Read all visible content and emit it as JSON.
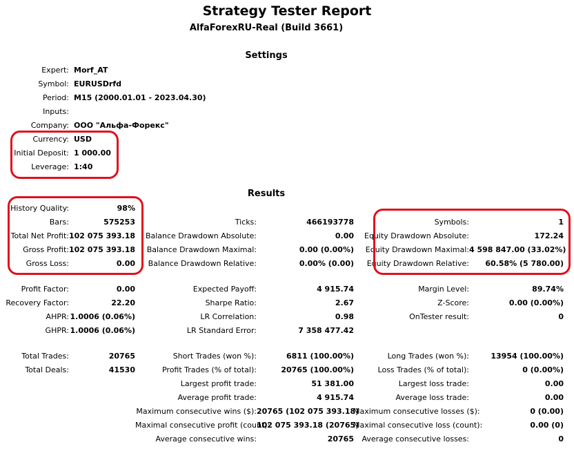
{
  "header": {
    "title": "Strategy Tester Report",
    "subtitle": "AlfaForexRU-Real (Build 3661)"
  },
  "settings": {
    "heading": "Settings",
    "rows": [
      {
        "label": "Expert:",
        "value": "Morf_AT"
      },
      {
        "label": "Symbol:",
        "value": "EURUSDrfd"
      },
      {
        "label": "Period:",
        "value": "M15 (2000.01.01 - 2023.04.30)"
      },
      {
        "label": "Inputs:",
        "value": ""
      },
      {
        "label": "Company:",
        "value": "ООО \"Альфа-Форекс\""
      },
      {
        "label": "Currency:",
        "value": "USD"
      },
      {
        "label": "Initial Deposit:",
        "value": "1 000.00"
      },
      {
        "label": "Leverage:",
        "value": "1:40"
      }
    ]
  },
  "results": {
    "heading": "Results",
    "col1": [
      {
        "label": "History Quality:",
        "value": "98%"
      },
      {
        "label": "Bars:",
        "value": "575253"
      },
      {
        "label": "Total Net Profit:",
        "value": "102 075 393.18"
      },
      {
        "label": "Gross Profit:",
        "value": "102 075 393.18"
      },
      {
        "label": "Gross Loss:",
        "value": "0.00"
      },
      {
        "label": "Profit Factor:",
        "value": "0.00"
      },
      {
        "label": "Recovery Factor:",
        "value": "22.20"
      },
      {
        "label": "AHPR:",
        "value": "1.0006 (0.06%)"
      },
      {
        "label": "GHPR:",
        "value": "1.0006 (0.06%)"
      },
      {
        "label": "Total Trades:",
        "value": "20765"
      },
      {
        "label": "Total Deals:",
        "value": "41530"
      }
    ],
    "col2": [
      {
        "label": "Ticks:",
        "value": "466193778"
      },
      {
        "label": "Balance Drawdown Absolute:",
        "value": "0.00"
      },
      {
        "label": "Balance Drawdown Maximal:",
        "value": "0.00 (0.00%)"
      },
      {
        "label": "Balance Drawdown Relative:",
        "value": "0.00% (0.00)"
      },
      {
        "label": "Expected Payoff:",
        "value": "4 915.74"
      },
      {
        "label": "Sharpe Ratio:",
        "value": "2.67"
      },
      {
        "label": "LR Correlation:",
        "value": "0.98"
      },
      {
        "label": "LR Standard Error:",
        "value": "7 358 477.42"
      },
      {
        "label": "Short Trades (won %):",
        "value": "6811 (100.00%)"
      },
      {
        "label": "Profit Trades (% of total):",
        "value": "20765 (100.00%)"
      },
      {
        "label": "Largest profit trade:",
        "value": "51 381.00"
      },
      {
        "label": "Average profit trade:",
        "value": "4 915.74"
      },
      {
        "label": "Maximum consecutive wins ($):",
        "value": "20765 (102 075 393.18)"
      },
      {
        "label": "Maximal consecutive profit (count):",
        "value": "102 075 393.18 (20765)"
      },
      {
        "label": "Average consecutive wins:",
        "value": "20765"
      }
    ],
    "col3": [
      {
        "label": "Symbols:",
        "value": "1"
      },
      {
        "label": "Equity Drawdown Absolute:",
        "value": "172.24"
      },
      {
        "label": "Equity Drawdown Maximal:",
        "value": "4 598 847.00 (33.02%)"
      },
      {
        "label": "Equity Drawdown Relative:",
        "value": "60.58% (5 780.00)"
      },
      {
        "label": "Margin Level:",
        "value": "89.74%"
      },
      {
        "label": "Z-Score:",
        "value": "0.00 (0.00%)"
      },
      {
        "label": "OnTester result:",
        "value": "0"
      },
      {
        "label": "Long Trades (won %):",
        "value": "13954 (100.00%)"
      },
      {
        "label": "Loss Trades (% of total):",
        "value": "0 (0.00%)"
      },
      {
        "label": "Largest loss trade:",
        "value": "0.00"
      },
      {
        "label": "Average loss trade:",
        "value": "0.00"
      },
      {
        "label": "Maximum consecutive losses ($):",
        "value": "0 (0.00)"
      },
      {
        "label": "Maximal consecutive loss (count):",
        "value": "0.00 (0)"
      },
      {
        "label": "Average consecutive losses:",
        "value": "0"
      }
    ]
  },
  "highlight_color": "#e0101c"
}
